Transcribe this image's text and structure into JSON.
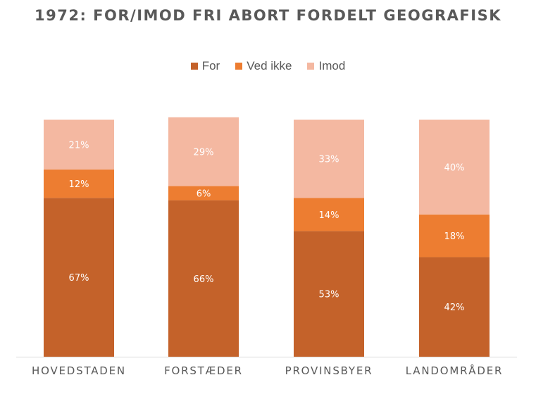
{
  "chart_data": {
    "type": "bar",
    "stacked": true,
    "title": "1972: FOR/IMOD FRI ABORT FORDELT GEOGRAFISK",
    "categories": [
      "HOVEDSTADEN",
      "FORSTÆDER",
      "PROVINSBYER",
      "LANDOMRÅDER"
    ],
    "series": [
      {
        "name": "For",
        "values": [
          67,
          66,
          53,
          42
        ],
        "labels": [
          "67%",
          "66%",
          "53%",
          "42%"
        ],
        "color": "#c4622a"
      },
      {
        "name": "Ved ikke",
        "values": [
          12,
          6,
          14,
          18
        ],
        "labels": [
          "12%",
          "6%",
          "14%",
          "18%"
        ],
        "color": "#ed7d31"
      },
      {
        "name": "Imod",
        "values": [
          21,
          29,
          33,
          40
        ],
        "labels": [
          "21%",
          "29%",
          "33%",
          "40%"
        ],
        "color": "#f4b8a1"
      }
    ],
    "ylim": [
      0,
      100
    ],
    "legend_position": "top",
    "grid": false
  }
}
